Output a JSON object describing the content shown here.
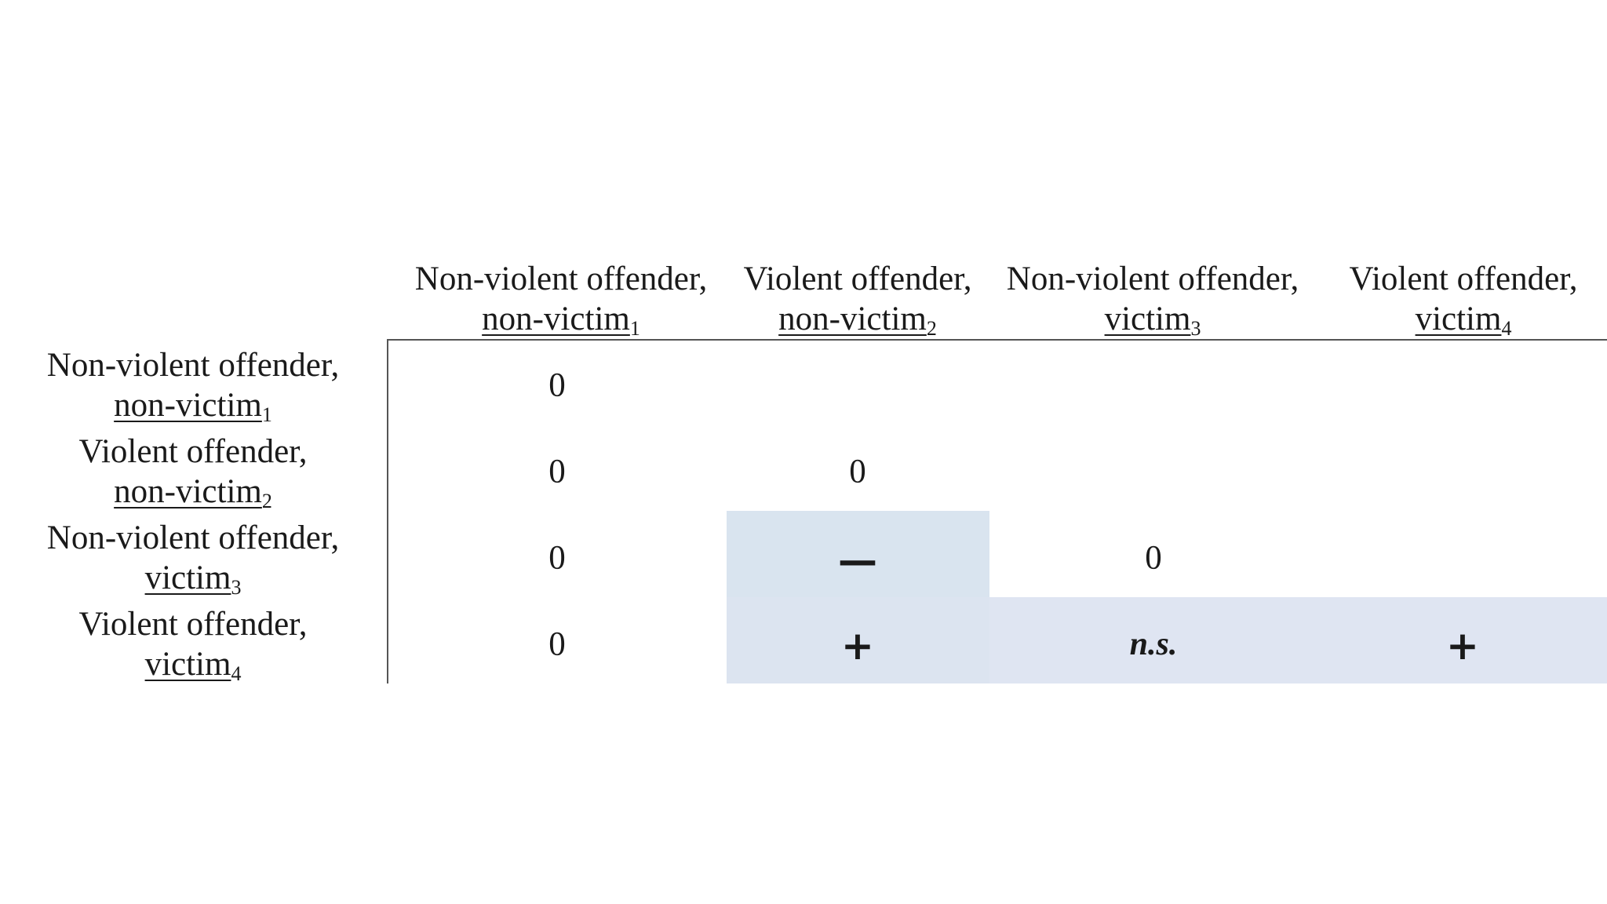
{
  "columns": [
    {
      "line1": "Non-violent offender,",
      "line2": "non-victim",
      "sub": "1"
    },
    {
      "line1": "Violent offender,",
      "line2": "non-victim",
      "sub": "2"
    },
    {
      "line1": "Non-violent offender,",
      "line2": "victim",
      "sub": "3"
    },
    {
      "line1": "Violent offender,",
      "line2": "victim",
      "sub": "4"
    }
  ],
  "rows": [
    {
      "line1": "Non-violent offender,",
      "line2": "non-victim",
      "sub": "1"
    },
    {
      "line1": "Violent offender,",
      "line2": "non-victim",
      "sub": "2"
    },
    {
      "line1": "Non-violent offender,",
      "line2": "victim",
      "sub": "3"
    },
    {
      "line1": "Violent offender,",
      "line2": "victim",
      "sub": "4"
    }
  ],
  "cells": [
    [
      "0",
      "",
      "",
      ""
    ],
    [
      "0",
      "0",
      "",
      ""
    ],
    [
      "0",
      "—",
      "0",
      ""
    ],
    [
      "0",
      "+",
      "n.s.",
      "+"
    ]
  ],
  "shaded_cells": [
    [
      2,
      1
    ],
    [
      3,
      1
    ],
    [
      3,
      2
    ],
    [
      3,
      3
    ]
  ],
  "colors": {
    "shade_column": "#d9e4ef",
    "shade_row": "#dfe5f2",
    "text": "#1a1a1a",
    "rule": "#555555"
  }
}
